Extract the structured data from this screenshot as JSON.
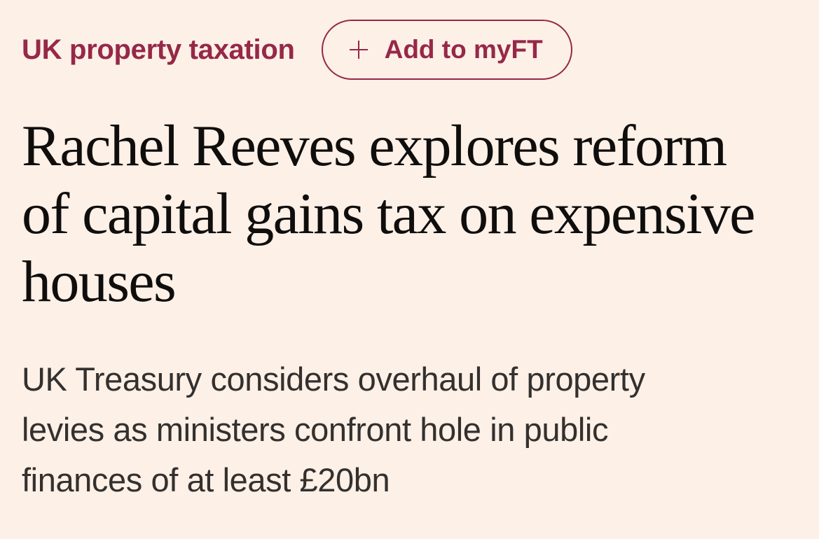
{
  "topic": {
    "label": "UK property taxation"
  },
  "myft_button": {
    "icon": "plus-icon",
    "label": "Add to myFT"
  },
  "article": {
    "headline": "Rachel Reeves explores reform\nof capital gains tax on expensive\nhouses",
    "standfirst": "UK Treasury considers overhaul of property\nlevies as ministers confront hole in public\nfinances of at least £20bn"
  },
  "colors": {
    "background": "#fcf0e7",
    "accent": "#962848",
    "headline_text": "#0f0e0d",
    "standfirst_text": "#33302e"
  }
}
